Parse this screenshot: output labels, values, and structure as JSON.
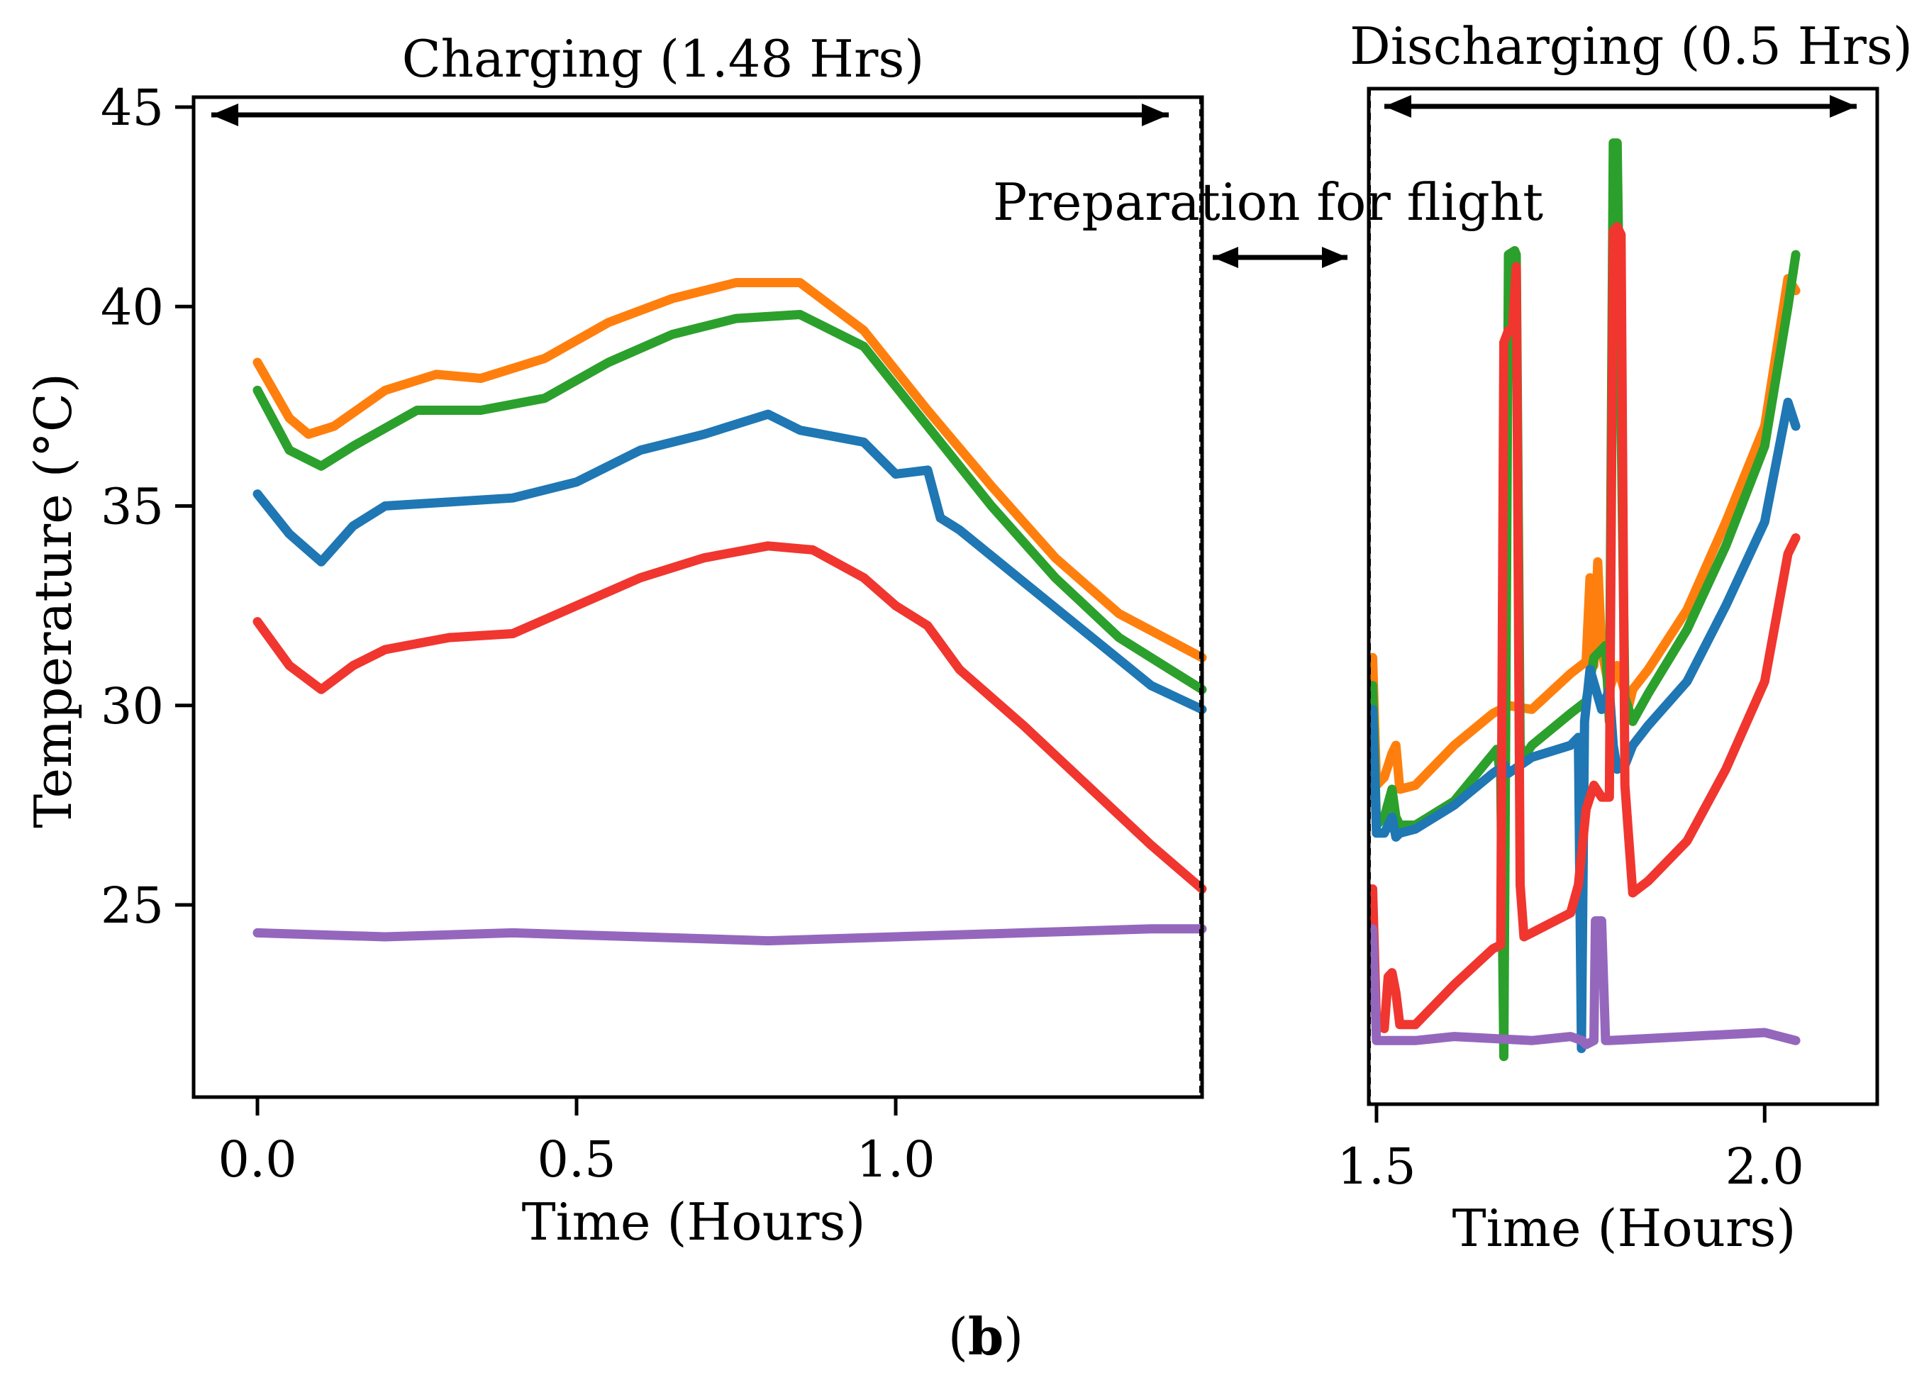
{
  "chart_data": [
    {
      "type": "line",
      "panel": "charging",
      "header": "Charging (1.48 Hrs)",
      "xlabel": "Time (Hours)",
      "ylabel": "Temperature (°C)",
      "xlim": [
        -0.1,
        1.48
      ],
      "ylim": [
        20.8,
        45.4
      ],
      "x_ticks": [
        0.0,
        0.5,
        1.0
      ],
      "x_tick_labels": [
        "0.0",
        "0.5",
        "1.0"
      ],
      "y_ticks": [
        25,
        30,
        35,
        40,
        45
      ],
      "y_tick_labels": [
        "25",
        "30",
        "35",
        "40",
        "45"
      ],
      "grid": false,
      "series": [
        {
          "name": "orange",
          "color": "#ff7f0e",
          "x": [
            0.0,
            0.05,
            0.08,
            0.12,
            0.2,
            0.28,
            0.35,
            0.45,
            0.55,
            0.65,
            0.75,
            0.85,
            0.95,
            1.05,
            1.15,
            1.25,
            1.35,
            1.48
          ],
          "y": [
            38.6,
            37.2,
            36.8,
            37.0,
            37.9,
            38.3,
            38.2,
            38.7,
            39.6,
            40.2,
            40.6,
            40.6,
            39.4,
            37.4,
            35.5,
            33.7,
            32.3,
            31.2
          ]
        },
        {
          "name": "green",
          "color": "#2ca02c",
          "x": [
            0.0,
            0.05,
            0.1,
            0.15,
            0.25,
            0.35,
            0.45,
            0.55,
            0.65,
            0.75,
            0.85,
            0.95,
            1.05,
            1.15,
            1.25,
            1.35,
            1.48
          ],
          "y": [
            37.9,
            36.4,
            36.0,
            36.5,
            37.4,
            37.4,
            37.7,
            38.6,
            39.3,
            39.7,
            39.8,
            39.0,
            37.0,
            35.0,
            33.2,
            31.7,
            30.4
          ]
        },
        {
          "name": "blue",
          "color": "#1f77b4",
          "x": [
            0.0,
            0.05,
            0.1,
            0.15,
            0.2,
            0.3,
            0.4,
            0.5,
            0.6,
            0.7,
            0.8,
            0.85,
            0.95,
            1.0,
            1.05,
            1.07,
            1.1,
            1.2,
            1.3,
            1.4,
            1.48
          ],
          "y": [
            35.3,
            34.3,
            33.6,
            34.5,
            35.0,
            35.1,
            35.2,
            35.6,
            36.4,
            36.8,
            37.3,
            36.9,
            36.6,
            35.8,
            35.9,
            34.7,
            34.4,
            33.1,
            31.8,
            30.5,
            29.9
          ]
        },
        {
          "name": "red",
          "color": "#f0362f",
          "x": [
            0.0,
            0.05,
            0.1,
            0.15,
            0.2,
            0.3,
            0.4,
            0.5,
            0.6,
            0.7,
            0.8,
            0.87,
            0.95,
            1.0,
            1.05,
            1.1,
            1.2,
            1.3,
            1.4,
            1.48
          ],
          "y": [
            32.1,
            31.0,
            30.4,
            31.0,
            31.4,
            31.7,
            31.8,
            32.5,
            33.2,
            33.7,
            34.0,
            33.9,
            33.2,
            32.5,
            32.0,
            30.9,
            29.5,
            28.0,
            26.5,
            25.4
          ]
        },
        {
          "name": "purple",
          "color": "#9467bd",
          "x": [
            0.0,
            0.2,
            0.4,
            0.6,
            0.8,
            1.0,
            1.2,
            1.4,
            1.48
          ],
          "y": [
            24.3,
            24.2,
            24.3,
            24.2,
            24.1,
            24.2,
            24.3,
            24.4,
            24.4
          ]
        }
      ]
    },
    {
      "type": "line",
      "panel": "discharging",
      "header": "Discharging (0.5 Hrs)",
      "xlabel": "Time (Hours)",
      "ylabel": "",
      "xlim": [
        1.49,
        2.145
      ],
      "ylim": [
        20.8,
        45.4
      ],
      "x_ticks": [
        1.5,
        2.0
      ],
      "x_tick_labels": [
        "1.5",
        "2.0"
      ],
      "grid": false,
      "series": [
        {
          "name": "orange",
          "color": "#ff7f0e",
          "x": [
            1.495,
            1.5,
            1.51,
            1.52,
            1.525,
            1.53,
            1.55,
            1.6,
            1.65,
            1.67,
            1.7,
            1.75,
            1.77,
            1.775,
            1.78,
            1.785,
            1.79,
            1.8,
            1.81,
            1.825,
            1.83,
            1.85,
            1.9,
            1.95,
            2.0,
            2.03,
            2.04
          ],
          "y": [
            31.2,
            28.0,
            28.2,
            28.8,
            29.0,
            27.9,
            28.0,
            29.0,
            29.8,
            30.0,
            29.9,
            30.8,
            31.1,
            33.2,
            31.0,
            33.6,
            31.4,
            30.4,
            31.0,
            30.0,
            30.4,
            30.9,
            32.4,
            34.6,
            37.0,
            40.7,
            40.4
          ]
        },
        {
          "name": "green",
          "color": "#2ca02c",
          "x": [
            1.495,
            1.5,
            1.51,
            1.52,
            1.525,
            1.53,
            1.55,
            1.6,
            1.655,
            1.66,
            1.664,
            1.67,
            1.678,
            1.68,
            1.685,
            1.69,
            1.7,
            1.75,
            1.77,
            1.78,
            1.795,
            1.8,
            1.805,
            1.81,
            1.82,
            1.83,
            1.85,
            1.9,
            1.95,
            2.0,
            2.03,
            2.04
          ],
          "y": [
            30.5,
            27.0,
            27.2,
            27.9,
            27.2,
            27.0,
            27.0,
            27.6,
            28.9,
            28.2,
            21.2,
            41.3,
            41.4,
            41.3,
            29.0,
            28.7,
            29.0,
            29.8,
            30.1,
            31.2,
            31.5,
            29.6,
            44.1,
            44.1,
            30.2,
            29.6,
            30.3,
            31.9,
            34.0,
            36.5,
            40.0,
            41.3
          ]
        },
        {
          "name": "blue",
          "color": "#1f77b4",
          "x": [
            1.495,
            1.5,
            1.51,
            1.52,
            1.525,
            1.53,
            1.55,
            1.6,
            1.65,
            1.665,
            1.67,
            1.7,
            1.75,
            1.76,
            1.764,
            1.768,
            1.775,
            1.79,
            1.8,
            1.805,
            1.81,
            1.82,
            1.83,
            1.85,
            1.9,
            1.95,
            2.0,
            2.03,
            2.04
          ],
          "y": [
            29.9,
            26.8,
            26.8,
            27.2,
            26.7,
            26.8,
            26.9,
            27.5,
            28.3,
            28.5,
            28.3,
            28.7,
            29.0,
            29.2,
            21.4,
            29.6,
            30.9,
            29.9,
            30.4,
            29.0,
            28.4,
            28.5,
            29.0,
            29.5,
            30.6,
            32.5,
            34.6,
            37.6,
            37.0
          ]
        },
        {
          "name": "red",
          "color": "#f0362f",
          "x": [
            1.495,
            1.5,
            1.51,
            1.515,
            1.52,
            1.525,
            1.53,
            1.55,
            1.6,
            1.65,
            1.66,
            1.664,
            1.67,
            1.675,
            1.68,
            1.685,
            1.69,
            1.7,
            1.75,
            1.76,
            1.77,
            1.78,
            1.79,
            1.8,
            1.805,
            1.81,
            1.815,
            1.82,
            1.83,
            1.85,
            1.9,
            1.95,
            2.0,
            2.03,
            2.04
          ],
          "y": [
            25.4,
            22.0,
            21.9,
            23.2,
            23.3,
            22.8,
            22.0,
            22.0,
            23.0,
            23.9,
            24.0,
            39.1,
            39.4,
            39.4,
            41.0,
            25.5,
            24.2,
            24.3,
            24.8,
            25.5,
            27.4,
            28.0,
            27.7,
            27.7,
            41.9,
            42.0,
            41.8,
            28.0,
            25.3,
            25.6,
            26.6,
            28.4,
            30.6,
            33.8,
            34.2
          ]
        },
        {
          "name": "purple",
          "color": "#9467bd",
          "x": [
            1.495,
            1.5,
            1.55,
            1.6,
            1.7,
            1.75,
            1.765,
            1.77,
            1.78,
            1.782,
            1.79,
            1.795,
            1.8,
            1.9,
            2.0,
            2.04
          ],
          "y": [
            24.4,
            21.6,
            21.6,
            21.7,
            21.6,
            21.7,
            21.6,
            21.5,
            21.6,
            24.6,
            24.6,
            21.6,
            21.6,
            21.7,
            21.8,
            21.6
          ]
        }
      ]
    }
  ],
  "annotations": {
    "preparation": "Preparation for flight"
  },
  "caption": {
    "open": "(",
    "letter": "b",
    "close": ")"
  }
}
